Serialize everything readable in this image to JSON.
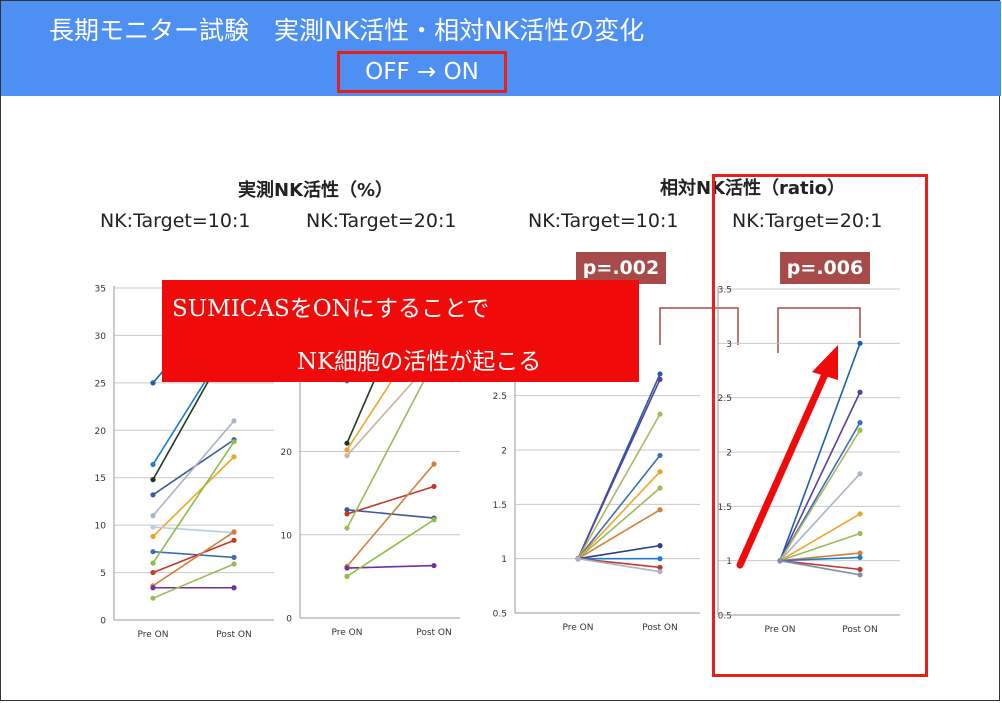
{
  "title": "長期モニター試験　実測NK活性・相対NK活性の変化",
  "subtitle": "OFF → ON",
  "figure": {
    "heading_measured": "実測NK活性（%）",
    "heading_relative": "相対NK活性（ratio）",
    "ratio_labels": [
      "NK:Target=10:1",
      "NK:Target=20:1",
      "NK:Target=10:1",
      "NK:Target=20:1"
    ],
    "p_values": [
      "p=.002",
      "p=.006"
    ]
  },
  "callout": {
    "line1": "SUMICASをONにすることで",
    "line2": "NK細胞の活性が起こる"
  },
  "colors": {
    "header_bg": "#4d8ff2",
    "highlight_red": "#e8201c",
    "callout_red": "#f10a0a",
    "pvalue_bg": "#a64a4a"
  },
  "chart_data": [
    {
      "type": "line",
      "x": [
        "Pre ON",
        "Post ON"
      ],
      "ylim": [
        0,
        35
      ],
      "yticks": [
        "0",
        "5",
        "10",
        "15",
        "20",
        "25",
        "30",
        "35"
      ],
      "series": [
        {
          "color": "#1f5fa8",
          "values": [
            25,
            35
          ]
        },
        {
          "color": "#1e7bd0",
          "values": [
            16.4,
            30
          ]
        },
        {
          "color": "#1f3b1f",
          "values": [
            14.8,
            30
          ]
        },
        {
          "color": "#3a5a9c",
          "values": [
            13.2,
            19
          ]
        },
        {
          "color": "#aab4c8",
          "values": [
            11,
            21
          ]
        },
        {
          "color": "#f2a22a",
          "values": [
            8.8,
            17.2
          ]
        },
        {
          "color": "#b8cce4",
          "values": [
            9.8,
            9.2
          ]
        },
        {
          "color": "#3b6fb5",
          "values": [
            7.2,
            6.6
          ]
        },
        {
          "color": "#8fbc45",
          "values": [
            6,
            18.8
          ]
        },
        {
          "color": "#c0392b",
          "values": [
            5,
            8.4
          ]
        },
        {
          "color": "#d4803a",
          "values": [
            3.6,
            9.3
          ]
        },
        {
          "color": "#7030a0",
          "values": [
            3.4,
            3.4
          ]
        },
        {
          "color": "#9bbb59",
          "values": [
            2.3,
            5.9
          ]
        }
      ]
    },
    {
      "type": "line",
      "x": [
        "Pre ON",
        "Post ON"
      ],
      "ylim": [
        0,
        40
      ],
      "yticks": [
        "0",
        "10",
        "20",
        "30",
        "40"
      ],
      "series": [
        {
          "color": "#7f8fb0",
          "values": [
            36,
            40
          ]
        },
        {
          "color": "#1e7bd0",
          "values": [
            32.5,
            47
          ]
        },
        {
          "color": "#3b6fb5",
          "values": [
            28.5,
            30.2
          ]
        },
        {
          "color": "#1f3b1f",
          "values": [
            21,
            45
          ]
        },
        {
          "color": "#f2a22a",
          "values": [
            20.2,
            36.3
          ]
        },
        {
          "color": "#c7b49a",
          "values": [
            19.5,
            31.2
          ]
        },
        {
          "color": "#3a5a9c",
          "values": [
            13,
            12
          ]
        },
        {
          "color": "#c0392b",
          "values": [
            12.5,
            15.8
          ]
        },
        {
          "color": "#9bbb59",
          "values": [
            10.8,
            30.8
          ]
        },
        {
          "color": "#d4803a",
          "values": [
            6.2,
            18.5
          ]
        },
        {
          "color": "#7030a0",
          "values": [
            6,
            6.3
          ]
        },
        {
          "color": "#8fbc45",
          "values": [
            5,
            11.8
          ]
        }
      ]
    },
    {
      "type": "line",
      "x": [
        "Pre ON",
        "Post ON"
      ],
      "ylim": [
        0.5,
        3.5
      ],
      "yticks": [
        "0.5",
        "1",
        "1.5",
        "2",
        "2.5"
      ],
      "series": [
        {
          "color": "#1f5fa8",
          "values": [
            1,
            2.7
          ]
        },
        {
          "color": "#5b3fa0",
          "values": [
            1,
            2.65
          ]
        },
        {
          "color": "#aab860",
          "values": [
            1,
            2.33
          ]
        },
        {
          "color": "#3b6fb5",
          "values": [
            1,
            1.95
          ]
        },
        {
          "color": "#f2a22a",
          "values": [
            1,
            1.8
          ]
        },
        {
          "color": "#9bbb59",
          "values": [
            1,
            1.65
          ]
        },
        {
          "color": "#d4803a",
          "values": [
            1,
            1.45
          ]
        },
        {
          "color": "#2a3f8f",
          "values": [
            1,
            1.12
          ]
        },
        {
          "color": "#1e7bd0",
          "values": [
            1,
            1
          ]
        },
        {
          "color": "#c0392b",
          "values": [
            1,
            0.92
          ]
        },
        {
          "color": "#aab4c8",
          "values": [
            1,
            0.88
          ]
        }
      ]
    },
    {
      "type": "line",
      "x": [
        "Pre ON",
        "Post ON"
      ],
      "ylim": [
        0.5,
        3.5
      ],
      "yticks": [
        "0.5",
        "1",
        "1.5",
        "2",
        "2.5",
        "3",
        "3.5"
      ],
      "series": [
        {
          "color": "#1f5fa8",
          "values": [
            1,
            3
          ]
        },
        {
          "color": "#5b3fa0",
          "values": [
            1,
            2.55
          ]
        },
        {
          "color": "#3b6fb5",
          "values": [
            1,
            2.27
          ]
        },
        {
          "color": "#aab860",
          "values": [
            1,
            2.2
          ]
        },
        {
          "color": "#aab4c8",
          "values": [
            1,
            1.8
          ]
        },
        {
          "color": "#f2a22a",
          "values": [
            1,
            1.43
          ]
        },
        {
          "color": "#9bbb59",
          "values": [
            1,
            1.25
          ]
        },
        {
          "color": "#d4803a",
          "values": [
            1,
            1.07
          ]
        },
        {
          "color": "#1e7bd0",
          "values": [
            1,
            1.03
          ]
        },
        {
          "color": "#c0392b",
          "values": [
            1,
            0.92
          ]
        },
        {
          "color": "#7f8fb0",
          "values": [
            1,
            0.87
          ]
        }
      ]
    }
  ]
}
